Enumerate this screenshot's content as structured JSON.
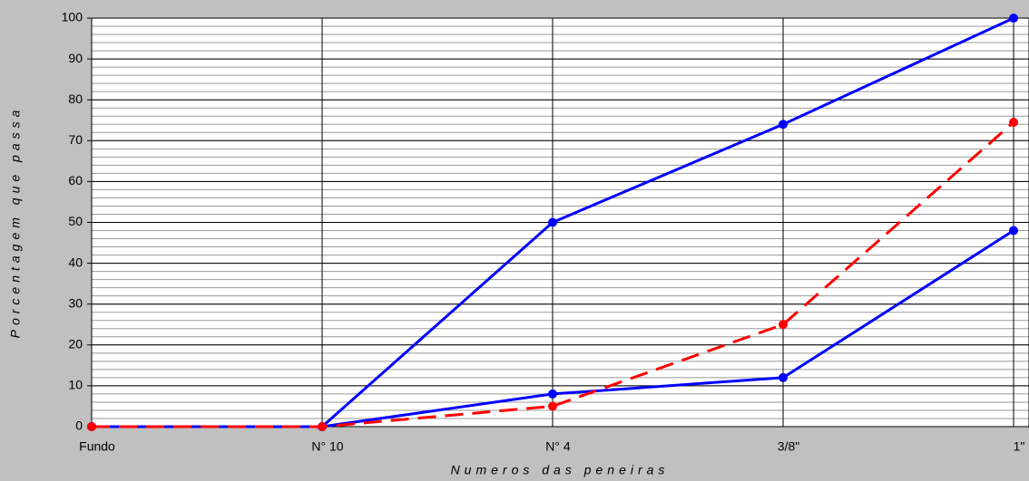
{
  "chart_data": {
    "type": "line",
    "x_label": "Numeros das peneiras",
    "y_label": "Porcentagem que passa",
    "categories": [
      "Fundo",
      "N° 10",
      "N° 4",
      "3/8\"",
      "1\""
    ],
    "series": [
      {
        "color": "#0000ff",
        "dash": false,
        "values": [
          0,
          0,
          50,
          74,
          100
        ]
      },
      {
        "color": "#0000ff",
        "dash": false,
        "values": [
          0,
          0,
          8,
          12,
          48
        ]
      },
      {
        "color": "#ff0000",
        "dash": true,
        "values": [
          0,
          0,
          5,
          25,
          74.5
        ]
      }
    ],
    "ylim": [
      0,
      100
    ],
    "yticks": [
      0,
      10,
      20,
      30,
      40,
      50,
      60,
      70,
      80,
      90,
      100
    ],
    "minor_grid_step": 2,
    "grid": true
  }
}
